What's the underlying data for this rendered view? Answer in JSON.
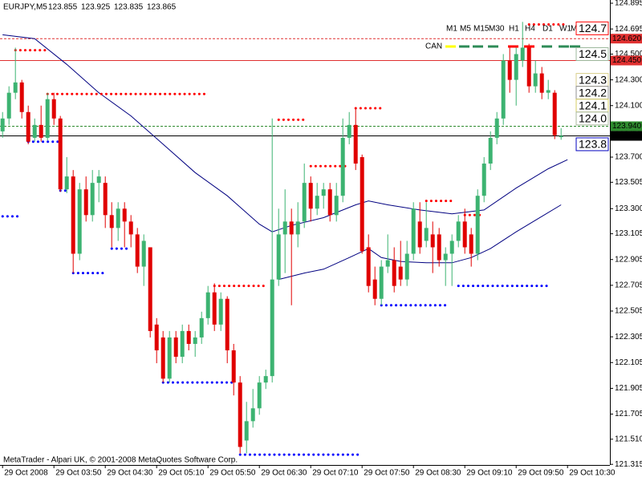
{
  "chart_data": {
    "type": "candlestick",
    "title": "EURJPY,M5",
    "up_color": "#3cb371",
    "down_color": "#e00000",
    "open": [
      123.9,
      124.0,
      124.2,
      124.28,
      124.05,
      123.85,
      123.95,
      123.85,
      124.15,
      124.0,
      123.45,
      123.55,
      122.95,
      123.45,
      123.25,
      123.5,
      123.5,
      123.25,
      123.15,
      123.3,
      123.2,
      123.1,
      122.85,
      123.0,
      122.4,
      122.3,
      121.98,
      122.3,
      122.15,
      122.35,
      122.25,
      122.3,
      122.45,
      122.65,
      122.4,
      122.6,
      122.2,
      121.95,
      121.5,
      121.65,
      121.75,
      121.95,
      122.0,
      122.75,
      123.1,
      123.2,
      123.1,
      123.2,
      123.5,
      123.3,
      123.4,
      123.45,
      123.25,
      123.4,
      123.85,
      123.95,
      123.7,
      123.0,
      122.75,
      122.6,
      122.85,
      122.9,
      122.85,
      122.75,
      122.95,
      123.2,
      123.05,
      123.1,
      123.1,
      122.9,
      122.95,
      123.05,
      123.2,
      123.1,
      122.95,
      123.4,
      123.65,
      123.85,
      124.0,
      124.45,
      124.3,
      124.45,
      124.55,
      124.25,
      124.35,
      124.2,
      124.2,
      123.855
    ],
    "high": [
      124.05,
      124.25,
      124.55,
      124.3,
      124.1,
      124.0,
      124.1,
      124.2,
      124.2,
      124.02,
      123.7,
      123.6,
      123.5,
      123.55,
      123.6,
      123.6,
      123.55,
      123.35,
      123.35,
      123.35,
      123.25,
      123.15,
      123.1,
      123.0,
      122.45,
      122.35,
      122.35,
      122.35,
      122.4,
      122.4,
      122.35,
      122.5,
      122.7,
      122.72,
      122.65,
      122.62,
      122.25,
      122.0,
      121.8,
      121.9,
      122.0,
      122.05,
      124.0,
      123.3,
      123.45,
      123.3,
      123.35,
      123.65,
      123.55,
      123.5,
      123.5,
      123.5,
      123.5,
      124.0,
      124.05,
      124.08,
      123.72,
      123.1,
      122.85,
      122.9,
      123.1,
      123.0,
      123.05,
      123.05,
      123.35,
      123.35,
      123.35,
      123.2,
      123.15,
      123.0,
      123.1,
      123.25,
      123.3,
      123.15,
      123.45,
      123.7,
      123.9,
      124.05,
      124.5,
      124.55,
      124.55,
      124.75,
      124.58,
      124.45,
      124.4,
      124.3,
      124.22,
      123.925
    ],
    "low": [
      123.85,
      123.95,
      124.15,
      124.0,
      123.8,
      123.82,
      123.82,
      123.83,
      123.95,
      123.43,
      123.42,
      122.8,
      122.9,
      123.2,
      123.2,
      123.35,
      123.15,
      123.0,
      123.05,
      123.0,
      123.0,
      122.8,
      122.7,
      122.3,
      122.1,
      121.95,
      121.95,
      122.1,
      122.1,
      122.2,
      122.15,
      122.25,
      122.4,
      122.35,
      122.35,
      122.1,
      121.85,
      121.4,
      121.4,
      121.6,
      121.7,
      121.9,
      121.95,
      122.7,
      122.8,
      122.55,
      123.0,
      123.15,
      123.2,
      123.25,
      123.3,
      123.2,
      123.2,
      123.35,
      123.8,
      123.6,
      122.95,
      122.65,
      122.55,
      122.55,
      122.8,
      122.65,
      122.7,
      122.7,
      122.9,
      122.95,
      123.0,
      122.8,
      122.85,
      122.7,
      122.7,
      123.0,
      122.95,
      122.85,
      122.9,
      123.35,
      123.6,
      123.8,
      123.95,
      124.2,
      124.1,
      124.4,
      124.2,
      124.2,
      124.15,
      124.15,
      123.84,
      123.835
    ],
    "close": [
      124.0,
      124.2,
      124.28,
      124.05,
      123.82,
      123.95,
      123.85,
      124.15,
      124.0,
      123.45,
      123.55,
      122.95,
      123.45,
      123.25,
      123.5,
      123.55,
      123.25,
      123.15,
      123.3,
      123.2,
      123.1,
      122.85,
      123.05,
      122.35,
      122.2,
      121.98,
      122.3,
      122.15,
      122.35,
      122.25,
      122.3,
      122.45,
      122.65,
      122.4,
      122.6,
      122.2,
      121.95,
      121.45,
      121.65,
      121.75,
      121.95,
      122.0,
      122.75,
      123.1,
      123.2,
      123.1,
      123.2,
      123.5,
      123.3,
      123.4,
      123.45,
      123.25,
      123.4,
      123.85,
      123.95,
      123.65,
      122.97,
      122.7,
      122.6,
      122.85,
      122.9,
      122.7,
      122.75,
      122.95,
      123.3,
      123.0,
      123.15,
      123.0,
      122.9,
      122.95,
      123.05,
      123.2,
      123.0,
      122.95,
      123.4,
      123.65,
      123.85,
      124.0,
      124.45,
      124.3,
      124.5,
      124.55,
      124.25,
      124.35,
      124.2,
      124.22,
      123.87,
      123.865
    ],
    "xlim": [
      -0.4,
      94.6
    ],
    "xticks": [
      {
        "value": 0,
        "label": "29 Oct 2008"
      },
      {
        "value": 8,
        "label": "29 Oct 03:50"
      },
      {
        "value": 16,
        "label": "29 Oct 04:30"
      },
      {
        "value": 24,
        "label": "29 Oct 05:10"
      },
      {
        "value": 32,
        "label": "29 Oct 05:50"
      },
      {
        "value": 40,
        "label": "29 Oct 06:30"
      },
      {
        "value": 48,
        "label": "29 Oct 07:10"
      },
      {
        "value": 56,
        "label": "29 Oct 07:50"
      },
      {
        "value": 64,
        "label": "29 Oct 08:30"
      },
      {
        "value": 72,
        "label": "29 Oct 09:10"
      },
      {
        "value": 80,
        "label": "29 Oct 09:50"
      },
      {
        "value": 88,
        "label": "29 Oct 10:30"
      }
    ],
    "ylim": [
      121.31,
      124.92
    ],
    "yticks": [
      124.895,
      124.695,
      {
        "value": 124.5,
        "label": "124.500"
      },
      {
        "value": 124.3,
        "label": "124.300"
      },
      {
        "value": 124.1,
        "label": "124.100"
      },
      {
        "value": 123.9,
        "label": "123.900"
      },
      {
        "value": 123.7,
        "label": "123.700"
      },
      123.505,
      {
        "value": 123.3,
        "label": "123.300"
      },
      123.105,
      122.905,
      122.705,
      122.505,
      122.305,
      122.105,
      121.905,
      121.705,
      {
        "value": 121.51,
        "label": "121.510"
      },
      121.315
    ],
    "lines": [
      {
        "color": "#000080",
        "x": [
          0,
          5,
          10,
          15,
          20,
          25,
          30,
          35,
          40,
          42,
          45,
          50,
          55,
          57,
          60,
          65,
          70,
          75,
          80,
          85,
          88
        ],
        "values": [
          124.65,
          124.62,
          124.42,
          124.2,
          124.02,
          123.8,
          123.58,
          123.4,
          123.18,
          123.12,
          123.17,
          123.23,
          123.33,
          123.36,
          123.33,
          123.29,
          123.26,
          123.29,
          123.46,
          123.61,
          123.68
        ]
      },
      {
        "color": "#000080",
        "x": [
          43,
          47,
          50,
          54,
          57,
          59,
          62,
          66,
          70,
          73,
          76,
          80,
          84,
          87
        ],
        "values": [
          122.75,
          122.8,
          122.83,
          122.92,
          122.99,
          122.92,
          122.89,
          122.88,
          122.88,
          122.92,
          122.99,
          123.12,
          123.24,
          123.33
        ]
      }
    ],
    "levels": [
      {
        "value": 124.53,
        "from": 2,
        "to": 7,
        "color": "#ff0000"
      },
      {
        "value": 124.19,
        "from": 7,
        "to": 32,
        "color": "#ff0000"
      },
      {
        "value": 123.99,
        "from": 43,
        "to": 47,
        "color": "#ff0000"
      },
      {
        "value": 124.08,
        "from": 55,
        "to": 59,
        "color": "#ff0000"
      },
      {
        "value": 123.63,
        "from": 48,
        "to": 54,
        "color": "#ff0000"
      },
      {
        "value": 122.7,
        "from": 33,
        "to": 41,
        "color": "#ff0000"
      },
      {
        "value": 123.36,
        "from": 66,
        "to": 70,
        "color": "#ff0000"
      },
      {
        "value": 123.25,
        "from": 72,
        "to": 75,
        "color": "#ff0000"
      },
      {
        "value": 124.73,
        "from": 82,
        "to": 88,
        "color": "#ff0000"
      },
      {
        "value": 123.24,
        "from": 0,
        "to": 3,
        "color": "#0000ff"
      },
      {
        "value": 123.82,
        "from": 4,
        "to": 9,
        "color": "#0000ff"
      },
      {
        "value": 123.44,
        "from": 9,
        "to": 10,
        "color": "#0000ff"
      },
      {
        "value": 122.8,
        "from": 11,
        "to": 16,
        "color": "#0000ff"
      },
      {
        "value": 122.99,
        "from": 17,
        "to": 20,
        "color": "#0000ff"
      },
      {
        "value": 121.95,
        "from": 25,
        "to": 36,
        "color": "#0000ff"
      },
      {
        "value": 121.39,
        "from": 37,
        "to": 56,
        "color": "#0000ff"
      },
      {
        "value": 122.55,
        "from": 59,
        "to": 69,
        "color": "#0000ff"
      },
      {
        "value": 122.7,
        "from": 71,
        "to": 85,
        "color": "#0000ff"
      }
    ],
    "hlines": [
      {
        "value": 124.62,
        "label": "124.620",
        "color": "#e03030",
        "dashed": true
      },
      {
        "value": 124.45,
        "label": "124.450",
        "color": "#e03030",
        "dashed": false
      },
      {
        "value": 123.94,
        "label": "123.940",
        "color": "#2e8b2e",
        "dashed": true
      },
      {
        "value": 123.865,
        "color": "#000000",
        "dashed": false
      }
    ]
  },
  "indicator": {
    "timeframes": [
      "M1",
      "M5",
      "M15",
      "M30",
      "H1",
      "H4",
      "D1",
      "W1",
      "MN"
    ],
    "signal_colors": [
      "#ffff00",
      "#2e8b57",
      "#2e8b57",
      "#2e8b57",
      "#ff0000",
      "#ff0000",
      "#2e8b57",
      "#2e8b57",
      "#2e8b57"
    ],
    "label": "CAN",
    "levels": [
      {
        "value": 124.7,
        "color": "#ff0000"
      },
      {
        "value": 124.5,
        "label": "124.5",
        "color": "#9cb89c"
      },
      {
        "value": 124.3,
        "label": "124.3",
        "color": "#d8cc88"
      },
      {
        "value": 124.2,
        "label": "124.2",
        "color": "#909090"
      },
      {
        "value": 124.1,
        "label": "124.1",
        "color": "#d4cc60"
      },
      {
        "value": 124,
        "label": "124.0",
        "color": "#a8b89c"
      },
      {
        "value": 123.8,
        "label": "123.8",
        "color": "#0000c0"
      }
    ]
  },
  "footer": "MetaTrader - Alpari UK, © 2001-2008 MetaQuotes Software Corp."
}
